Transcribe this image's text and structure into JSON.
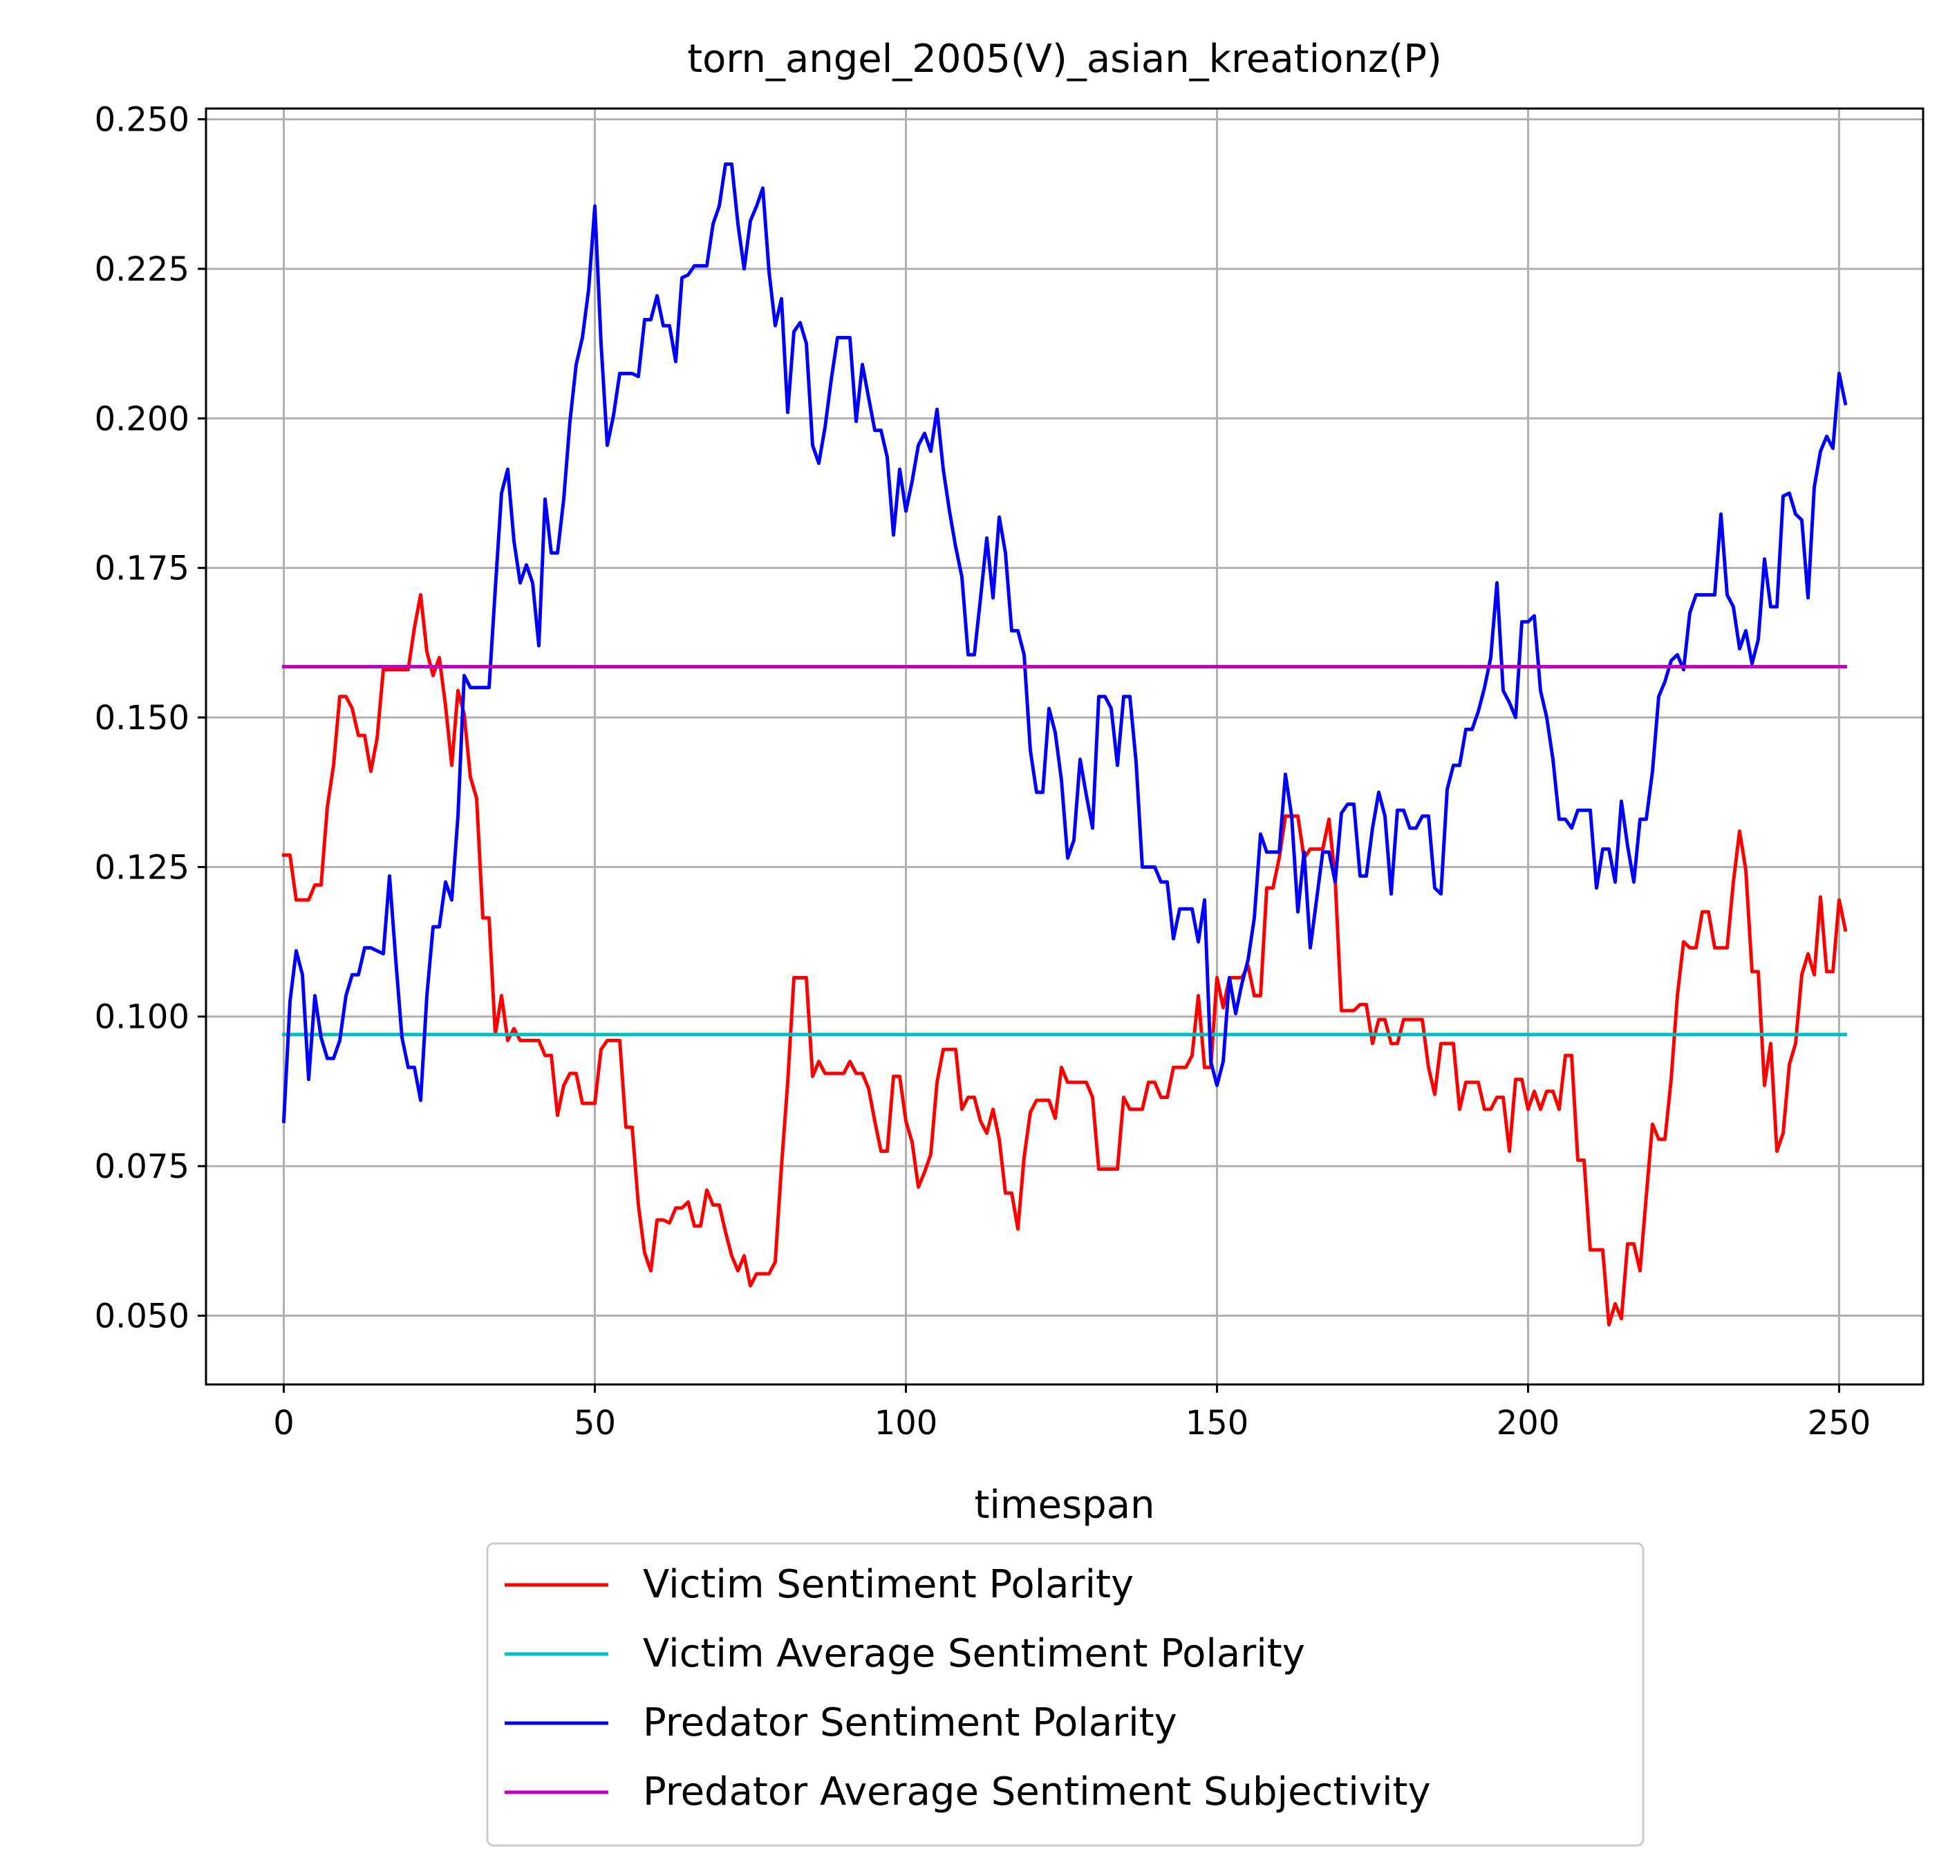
{
  "chart_data": {
    "type": "line",
    "title": "torn_angel_2005(V)_asian_kreationz(P)",
    "xlabel": "timespan",
    "ylabel": "",
    "xlim": [
      -12.5,
      263.5
    ],
    "ylim": [
      0.0385,
      0.2518
    ],
    "x_ticks": [
      0,
      50,
      100,
      150,
      200,
      250
    ],
    "x_tick_labels": [
      "0",
      "50",
      "100",
      "150",
      "200",
      "250"
    ],
    "y_ticks": [
      0.05,
      0.075,
      0.1,
      0.125,
      0.15,
      0.175,
      0.2,
      0.225,
      0.25
    ],
    "y_tick_labels": [
      "0.050",
      "0.075",
      "0.100",
      "0.125",
      "0.150",
      "0.175",
      "0.200",
      "0.225",
      "0.250"
    ],
    "grid": true,
    "legend_position": "below plot, centered",
    "series": [
      {
        "name": "Victim Sentiment Polarity",
        "color": "#ff0000",
        "x_start": 0,
        "x_step": 1,
        "values": [
          0.127,
          0.127,
          0.1195,
          0.1195,
          0.1195,
          0.122,
          0.122,
          0.135,
          0.142,
          0.1535,
          0.1535,
          0.1515,
          0.147,
          0.147,
          0.141,
          0.1465,
          0.158,
          0.158,
          0.158,
          0.158,
          0.158,
          0.165,
          0.1705,
          0.161,
          0.157,
          0.16,
          0.152,
          0.142,
          0.1545,
          0.1505,
          0.14,
          0.1365,
          0.1165,
          0.1165,
          0.097,
          0.1035,
          0.096,
          0.098,
          0.096,
          0.096,
          0.096,
          0.096,
          0.0935,
          0.0935,
          0.0835,
          0.0885,
          0.0905,
          0.0905,
          0.0855,
          0.0855,
          0.0855,
          0.0945,
          0.096,
          0.096,
          0.096,
          0.0815,
          0.0815,
          0.0685,
          0.0605,
          0.0575,
          0.066,
          0.066,
          0.0655,
          0.068,
          0.068,
          0.069,
          0.065,
          0.065,
          0.071,
          0.0685,
          0.0685,
          0.064,
          0.06,
          0.0575,
          0.06,
          0.055,
          0.057,
          0.057,
          0.057,
          0.059,
          0.075,
          0.089,
          0.1065,
          0.1065,
          0.1065,
          0.09,
          0.0925,
          0.0905,
          0.0905,
          0.0905,
          0.0905,
          0.0925,
          0.0905,
          0.0905,
          0.088,
          0.0825,
          0.0775,
          0.0775,
          0.09,
          0.09,
          0.0825,
          0.079,
          0.0715,
          0.074,
          0.077,
          0.089,
          0.0945,
          0.0945,
          0.0945,
          0.0845,
          0.0865,
          0.0865,
          0.0825,
          0.0805,
          0.0845,
          0.0795,
          0.0705,
          0.0705,
          0.0645,
          0.0765,
          0.084,
          0.086,
          0.086,
          0.086,
          0.083,
          0.0915,
          0.089,
          0.089,
          0.089,
          0.089,
          0.0865,
          0.0745,
          0.0745,
          0.0745,
          0.0745,
          0.0865,
          0.0845,
          0.0845,
          0.0845,
          0.089,
          0.089,
          0.0865,
          0.0865,
          0.0915,
          0.0915,
          0.0915,
          0.0935,
          0.1035,
          0.0915,
          0.0915,
          0.1065,
          0.1015,
          0.1065,
          0.1065,
          0.1065,
          0.1085,
          0.1035,
          0.1035,
          0.1215,
          0.1215,
          0.1265,
          0.1335,
          0.1335,
          0.1335,
          0.1265,
          0.128,
          0.128,
          0.128,
          0.133,
          0.123,
          0.101,
          0.101,
          0.101,
          0.102,
          0.102,
          0.0955,
          0.0995,
          0.0995,
          0.0955,
          0.0955,
          0.0995,
          0.0995,
          0.0995,
          0.0995,
          0.0915,
          0.087,
          0.0955,
          0.0955,
          0.0955,
          0.0845,
          0.089,
          0.089,
          0.089,
          0.0845,
          0.0845,
          0.0865,
          0.0865,
          0.0775,
          0.0895,
          0.0895,
          0.0845,
          0.0875,
          0.0845,
          0.0875,
          0.0875,
          0.0845,
          0.0935,
          0.0935,
          0.076,
          0.076,
          0.061,
          0.061,
          0.061,
          0.0485,
          0.052,
          0.0495,
          0.062,
          0.062,
          0.0575,
          0.07,
          0.082,
          0.0795,
          0.0795,
          0.0895,
          0.1035,
          0.1125,
          0.1115,
          0.1115,
          0.1175,
          0.1175,
          0.1115,
          0.1115,
          0.1115,
          0.1225,
          0.131,
          0.1245,
          0.1075,
          0.1075,
          0.0885,
          0.0955,
          0.0775,
          0.0805,
          0.092,
          0.0955,
          0.107,
          0.1105,
          0.107,
          0.12,
          0.1075,
          0.1075,
          0.1195,
          0.1145
        ]
      },
      {
        "name": "Victim Average Sentiment Polarity",
        "color": "#00bfbf",
        "x": [
          0,
          251
        ],
        "values": [
          0.097,
          0.097
        ]
      },
      {
        "name": "Predator Sentiment Polarity",
        "color": "#0000ff",
        "x_start": 0,
        "x_step": 1,
        "values": [
          0.0825,
          0.1025,
          0.111,
          0.107,
          0.0895,
          0.1035,
          0.0965,
          0.093,
          0.093,
          0.096,
          0.1035,
          0.107,
          0.107,
          0.1115,
          0.1115,
          0.111,
          0.1105,
          0.1235,
          0.1095,
          0.0965,
          0.0915,
          0.0915,
          0.086,
          0.1035,
          0.115,
          0.115,
          0.1225,
          0.1195,
          0.1335,
          0.157,
          0.155,
          0.155,
          0.155,
          0.155,
          0.1715,
          0.1875,
          0.1915,
          0.1795,
          0.1725,
          0.1755,
          0.1725,
          0.162,
          0.1865,
          0.1775,
          0.1775,
          0.1865,
          0.1995,
          0.209,
          0.2135,
          0.2215,
          0.2355,
          0.2125,
          0.1955,
          0.2005,
          0.2075,
          0.2075,
          0.2075,
          0.207,
          0.2165,
          0.2165,
          0.2205,
          0.2155,
          0.2155,
          0.2095,
          0.2235,
          0.224,
          0.2255,
          0.2255,
          0.2255,
          0.2325,
          0.2355,
          0.2425,
          0.2425,
          0.2325,
          0.225,
          0.233,
          0.2355,
          0.2385,
          0.2245,
          0.2155,
          0.22,
          0.201,
          0.2145,
          0.216,
          0.2125,
          0.1955,
          0.1925,
          0.1985,
          0.2065,
          0.2135,
          0.2135,
          0.2135,
          0.1995,
          0.209,
          0.2035,
          0.198,
          0.198,
          0.1935,
          0.1805,
          0.1915,
          0.1845,
          0.1895,
          0.1955,
          0.1975,
          0.1945,
          0.2015,
          0.1915,
          0.1845,
          0.1785,
          0.1735,
          0.1605,
          0.1605,
          0.17,
          0.18,
          0.17,
          0.1835,
          0.1775,
          0.1645,
          0.1645,
          0.1605,
          0.1445,
          0.1375,
          0.1375,
          0.1515,
          0.1475,
          0.1395,
          0.1265,
          0.1295,
          0.143,
          0.137,
          0.1315,
          0.1535,
          0.1535,
          0.1515,
          0.142,
          0.1535,
          0.1535,
          0.1425,
          0.125,
          0.125,
          0.125,
          0.1225,
          0.1225,
          0.113,
          0.118,
          0.118,
          0.118,
          0.1125,
          0.1195,
          0.0925,
          0.0885,
          0.0925,
          0.1065,
          0.1005,
          0.1055,
          0.1095,
          0.1165,
          0.1305,
          0.1275,
          0.1275,
          0.1275,
          0.1405,
          0.1335,
          0.1175,
          0.1275,
          0.1115,
          0.1195,
          0.1275,
          0.1275,
          0.1225,
          0.134,
          0.1355,
          0.1355,
          0.1235,
          0.1235,
          0.1315,
          0.1375,
          0.1335,
          0.1205,
          0.1345,
          0.1345,
          0.1315,
          0.1315,
          0.1335,
          0.1335,
          0.1215,
          0.1205,
          0.138,
          0.142,
          0.142,
          0.148,
          0.148,
          0.151,
          0.155,
          0.16,
          0.1725,
          0.1545,
          0.1525,
          0.15,
          0.166,
          0.166,
          0.167,
          0.1545,
          0.15,
          0.143,
          0.133,
          0.133,
          0.1315,
          0.1345,
          0.1345,
          0.1345,
          0.1215,
          0.128,
          0.128,
          0.1225,
          0.136,
          0.1285,
          0.1225,
          0.133,
          0.133,
          0.141,
          0.1535,
          0.156,
          0.1595,
          0.1605,
          0.158,
          0.1675,
          0.1705,
          0.1705,
          0.1705,
          0.1705,
          0.184,
          0.1705,
          0.1685,
          0.1615,
          0.1645,
          0.159,
          0.163,
          0.1765,
          0.1685,
          0.1685,
          0.187,
          0.1875,
          0.184,
          0.183,
          0.17,
          0.1885,
          0.1945,
          0.197,
          0.195,
          0.2075,
          0.2025
        ]
      },
      {
        "name": "Predator Average Sentiment Subjectivity",
        "color": "#bf00bf",
        "x": [
          0,
          251
        ],
        "values": [
          0.1585,
          0.1585
        ]
      }
    ]
  }
}
